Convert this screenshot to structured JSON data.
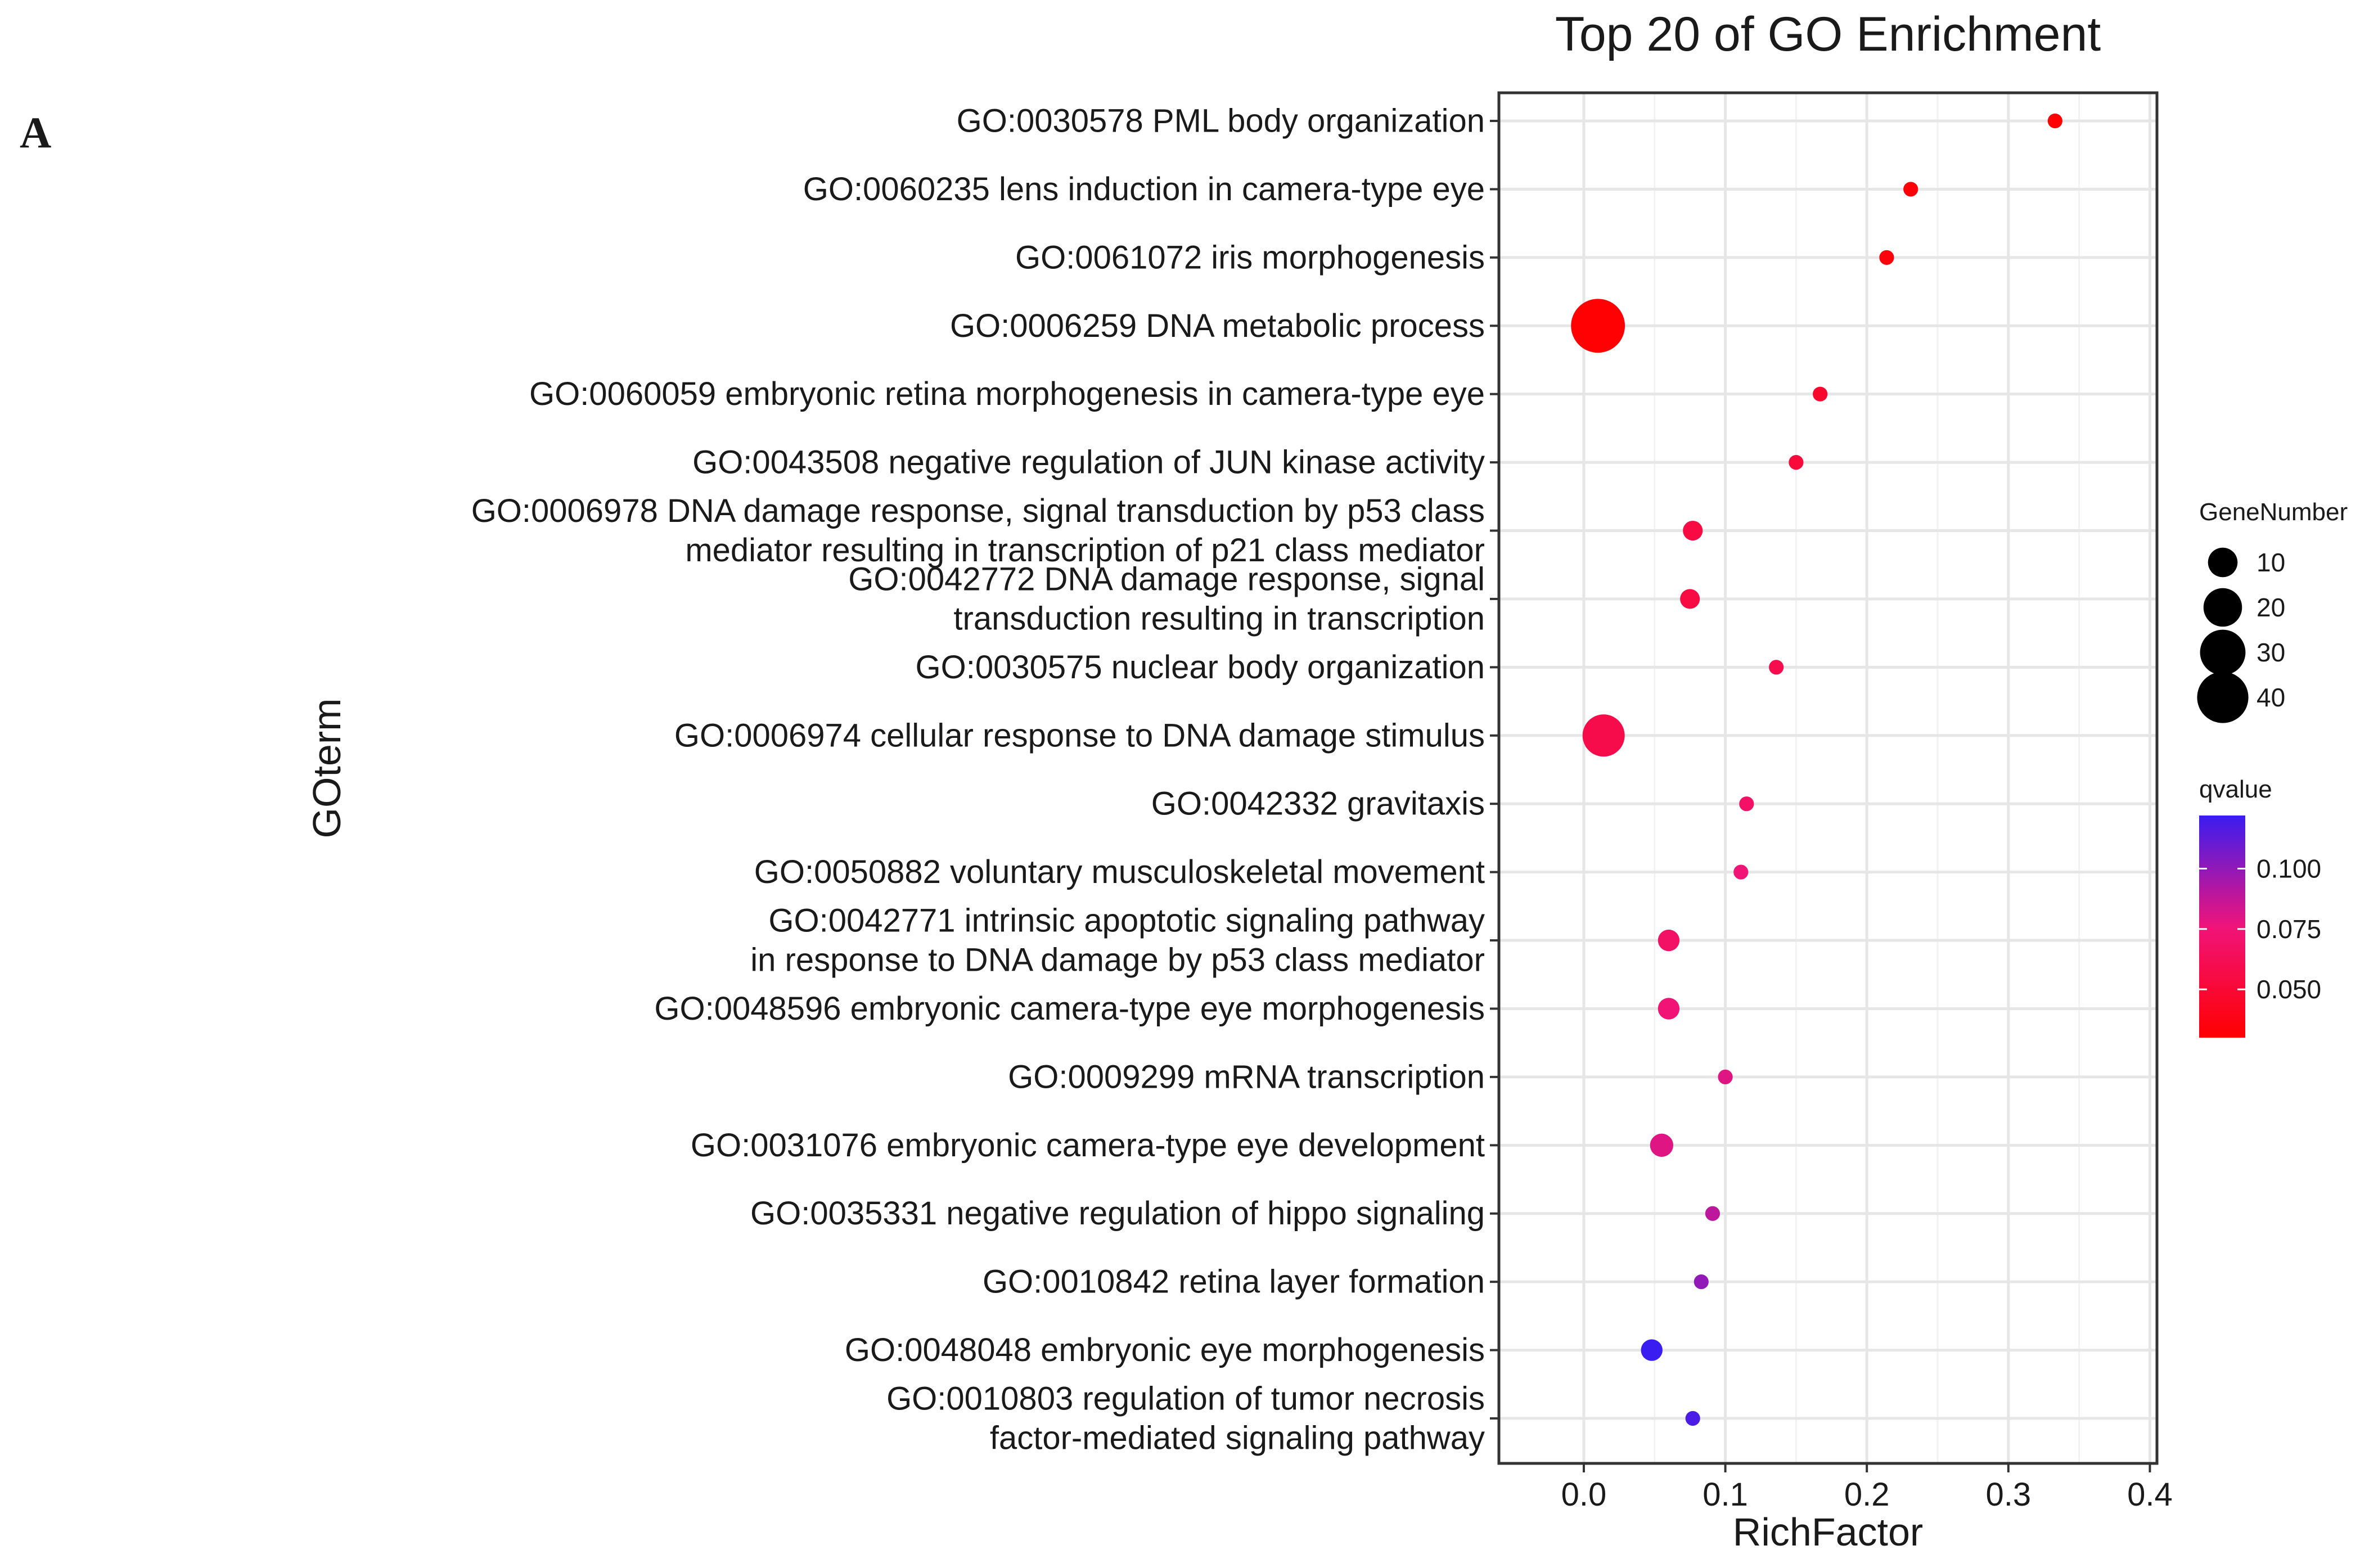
{
  "panel_label": "A",
  "chart_data": {
    "type": "scatter",
    "title": "Top 20 of GO Enrichment",
    "xlabel": "RichFactor",
    "ylabel": "GOterm",
    "xlim": [
      -0.06,
      0.405
    ],
    "xticks": [
      0.0,
      0.1,
      0.2,
      0.3,
      0.4
    ],
    "xtick_labels": [
      "0.0",
      "0.1",
      "0.2",
      "0.3",
      "0.4"
    ],
    "grid": true,
    "points": [
      {
        "term": "GO:0030578 PML body organization",
        "x": 0.333,
        "gene_number": 1,
        "qvalue": 0.031
      },
      {
        "term": "GO:0060235 lens induction in camera-type eye",
        "x": 0.231,
        "gene_number": 1,
        "qvalue": 0.033
      },
      {
        "term": "GO:0061072 iris morphogenesis",
        "x": 0.214,
        "gene_number": 1,
        "qvalue": 0.035
      },
      {
        "term": "GO:0006259 DNA metabolic process",
        "x": 0.01,
        "gene_number": 45,
        "qvalue": 0.031
      },
      {
        "term": "GO:0060059 embryonic retina morphogenesis in camera-type eye",
        "x": 0.167,
        "gene_number": 1,
        "qvalue": 0.047
      },
      {
        "term": "GO:0043508 negative regulation of JUN kinase activity",
        "x": 0.15,
        "gene_number": 1,
        "qvalue": 0.052
      },
      {
        "term": "GO:0006978 DNA damage response, signal transduction by p53 class mediator resulting in transcription of p21 class mediator",
        "x": 0.077,
        "gene_number": 3,
        "qvalue": 0.055
      },
      {
        "term": "GO:0042772 DNA damage response, signal transduction resulting in transcription",
        "x": 0.075,
        "gene_number": 3,
        "qvalue": 0.055
      },
      {
        "term": "GO:0030575 nuclear body organization",
        "x": 0.136,
        "gene_number": 1,
        "qvalue": 0.059
      },
      {
        "term": "GO:0006974 cellular response to DNA damage stimulus",
        "x": 0.014,
        "gene_number": 25,
        "qvalue": 0.058
      },
      {
        "term": "GO:0042332 gravitaxis",
        "x": 0.115,
        "gene_number": 1,
        "qvalue": 0.068
      },
      {
        "term": "GO:0050882 voluntary musculoskeletal movement",
        "x": 0.111,
        "gene_number": 1,
        "qvalue": 0.074
      },
      {
        "term": "GO:0042771 intrinsic apoptotic signaling pathway in response to DNA damage by p53 class mediator",
        "x": 0.06,
        "gene_number": 4,
        "qvalue": 0.068
      },
      {
        "term": "GO:0048596 embryonic camera-type eye morphogenesis",
        "x": 0.06,
        "gene_number": 4,
        "qvalue": 0.074
      },
      {
        "term": "GO:0009299 mRNA transcription",
        "x": 0.1,
        "gene_number": 1,
        "qvalue": 0.08
      },
      {
        "term": "GO:0031076 embryonic camera-type eye development",
        "x": 0.055,
        "gene_number": 5,
        "qvalue": 0.08
      },
      {
        "term": "GO:0035331 negative regulation of hippo signaling",
        "x": 0.091,
        "gene_number": 1,
        "qvalue": 0.089
      },
      {
        "term": "GO:0010842 retina layer formation",
        "x": 0.083,
        "gene_number": 1,
        "qvalue": 0.1
      },
      {
        "term": "GO:0048048 embryonic eye morphogenesis",
        "x": 0.048,
        "gene_number": 4,
        "qvalue": 0.122
      },
      {
        "term": "GO:0010803 regulation of tumor necrosis factor-mediated signaling pathway",
        "x": 0.077,
        "gene_number": 1,
        "qvalue": 0.118
      }
    ],
    "y_labels": [
      [
        "GO:0030578 PML body organization"
      ],
      [
        "GO:0060235 lens induction in camera-type eye"
      ],
      [
        "GO:0061072 iris morphogenesis"
      ],
      [
        "GO:0006259 DNA metabolic process"
      ],
      [
        "GO:0060059 embryonic retina morphogenesis in camera-type eye"
      ],
      [
        "GO:0043508 negative regulation of JUN kinase activity"
      ],
      [
        "GO:0006978 DNA damage response, signal transduction by p53 class",
        "mediator resulting in transcription of p21 class mediator"
      ],
      [
        "GO:0042772 DNA damage response, signal",
        "transduction resulting in transcription"
      ],
      [
        "GO:0030575 nuclear body organization"
      ],
      [
        "GO:0006974 cellular response to DNA damage stimulus"
      ],
      [
        "GO:0042332 gravitaxis"
      ],
      [
        "GO:0050882 voluntary musculoskeletal movement"
      ],
      [
        "GO:0042771 intrinsic apoptotic signaling pathway",
        "in response to DNA damage by p53 class mediator"
      ],
      [
        "GO:0048596 embryonic camera-type eye morphogenesis"
      ],
      [
        "GO:0009299 mRNA transcription"
      ],
      [
        "GO:0031076 embryonic camera-type eye development"
      ],
      [
        "GO:0035331 negative regulation of hippo signaling"
      ],
      [
        "GO:0010842 retina layer formation"
      ],
      [
        "GO:0048048 embryonic eye morphogenesis"
      ],
      [
        "GO:0010803 regulation of tumor necrosis",
        "factor-mediated signaling pathway"
      ]
    ],
    "legend_size": {
      "title": "GeneNumber",
      "placement": "right",
      "entries": [
        10,
        20,
        30,
        40
      ],
      "labels": [
        "10",
        "20",
        "30",
        "40"
      ]
    },
    "legend_color": {
      "title": "qvalue",
      "placement": "right",
      "range": [
        0.03,
        0.122
      ],
      "ticks": [
        0.05,
        0.075,
        0.1
      ],
      "tick_labels": [
        "0.050",
        "0.075",
        "0.100"
      ],
      "low_color": "#ff0000",
      "mid_color": "#f0147a",
      "high_color": "#3a1df0"
    }
  }
}
